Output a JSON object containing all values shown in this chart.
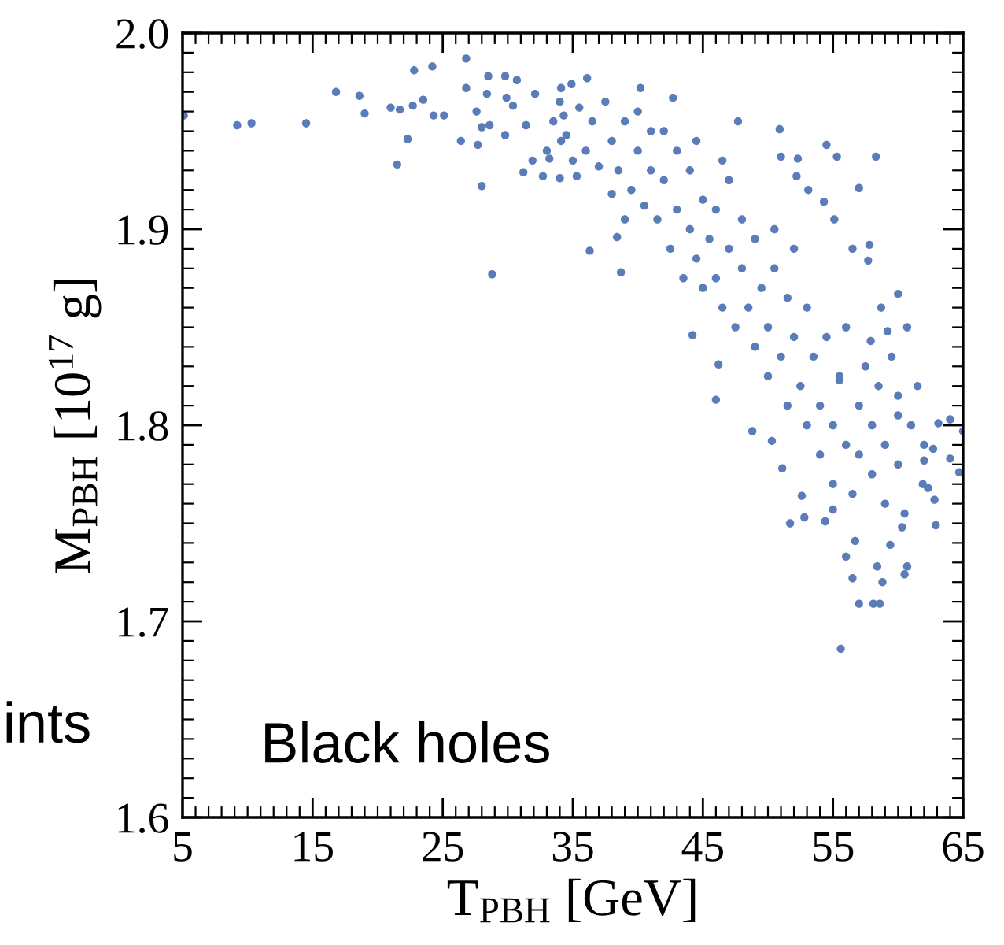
{
  "chart_data": {
    "type": "scatter",
    "xlabel": "T$_{PBH}$ [GeV]",
    "ylabel": "M$_{PBH}$ [10$^{17}$ g]",
    "annotations": [
      "Black holes",
      "ints"
    ],
    "xlim": [
      5,
      65
    ],
    "xticks": [
      5,
      15,
      25,
      35,
      45,
      55,
      65
    ],
    "ylim": [
      1.6,
      2.0
    ],
    "yticks": [
      {
        "value": 1.6,
        "label": "1.6"
      },
      {
        "value": 1.7,
        "label": "1.7"
      },
      {
        "value": 1.8,
        "label": "1.8"
      },
      {
        "value": 1.9,
        "label": "1.9"
      },
      {
        "value": 2.0,
        "label": "2.0"
      }
    ],
    "grid": false,
    "marker": "circle",
    "series": [
      {
        "color": "#5a7db9",
        "x": [
          5.1,
          9.2,
          10.3,
          14.5,
          16.8,
          18.6,
          19.0,
          21.0,
          21.7,
          21.5,
          22.3,
          22.8,
          24.2,
          22.7,
          23.5,
          24.3,
          25.1,
          26.8,
          28.0,
          28.8,
          26.4,
          27.7,
          28.5,
          27.6,
          28.0,
          28.6,
          26.8,
          28.4,
          29.8,
          30.7,
          29.9,
          30.4,
          29.8,
          31.2,
          31.9,
          32.7,
          34.0,
          35.3,
          33.2,
          31.4,
          32.1,
          34.1,
          34.9,
          34.3,
          34.1,
          36.1,
          40.2,
          42.7,
          47.7,
          50.9,
          54.5,
          55.3,
          58.3,
          57.0,
          51.0,
          52.3,
          52.2,
          53.1,
          54.3,
          55.1,
          57.8,
          56.5,
          57.7,
          60.0,
          60.7,
          58.7,
          59.2,
          60.0,
          57.9,
          55.5,
          44.2,
          46.2,
          36.3,
          38.7,
          38.4,
          46.0,
          48.8,
          50.3,
          51.1,
          52.6,
          51.7,
          52.8,
          54.4,
          55.0,
          56.0,
          56.5,
          56.7,
          57.0,
          58.1,
          58.6,
          55.6,
          58.4,
          60.5,
          60.7,
          58.8,
          59.4,
          60.3,
          62.9,
          61.9,
          62.3,
          62.0,
          62.7,
          64.0,
          64.0,
          65.0,
          64.7,
          62.8,
          63.1,
          33.5,
          34.5,
          35.5,
          36.0,
          36.5,
          37.0,
          35.0,
          37.5,
          33.0,
          34.0,
          38.0,
          38.5,
          39.0,
          39.5,
          40.0,
          40.5,
          41.0,
          38.0,
          39.0,
          40.0,
          41.0,
          41.5,
          42.0,
          42.5,
          43.0,
          43.0,
          43.5,
          44.0,
          44.0,
          44.5,
          45.0,
          45.0,
          42.0,
          44.5,
          45.5,
          46.0,
          46.0,
          46.5,
          47.0,
          47.0,
          47.5,
          48.0,
          48.0,
          48.5,
          49.0,
          49.0,
          49.5,
          46.5,
          50.0,
          50.0,
          50.5,
          51.0,
          51.5,
          51.5,
          52.0,
          52.5,
          53.0,
          53.0,
          50.5,
          52.0,
          53.5,
          54.0,
          54.0,
          54.5,
          55.0,
          55.0,
          55.5,
          56.0,
          56.0,
          56.5,
          57.0,
          57.0,
          57.5,
          58.0,
          58.0,
          58.5,
          59.0,
          59.0,
          59.5,
          60.0,
          60.0,
          60.5,
          61.0,
          61.5,
          62.0
        ],
        "values": [
          1.958,
          1.953,
          1.954,
          1.954,
          1.97,
          1.968,
          1.959,
          1.962,
          1.961,
          1.933,
          1.946,
          1.981,
          1.983,
          1.963,
          1.966,
          1.958,
          1.958,
          1.987,
          1.922,
          1.877,
          1.945,
          1.943,
          1.978,
          1.96,
          1.952,
          1.953,
          1.972,
          1.969,
          1.978,
          1.976,
          1.967,
          1.963,
          1.948,
          1.929,
          1.935,
          1.927,
          1.926,
          1.927,
          1.936,
          1.953,
          1.969,
          1.972,
          1.974,
          1.958,
          1.945,
          1.977,
          1.972,
          1.967,
          1.955,
          1.951,
          1.943,
          1.937,
          1.937,
          1.921,
          1.937,
          1.936,
          1.927,
          1.92,
          1.914,
          1.905,
          1.892,
          1.89,
          1.884,
          1.867,
          1.85,
          1.86,
          1.848,
          1.815,
          1.843,
          1.823,
          1.846,
          1.831,
          1.889,
          1.878,
          1.896,
          1.813,
          1.797,
          1.792,
          1.778,
          1.764,
          1.75,
          1.753,
          1.751,
          1.757,
          1.733,
          1.722,
          1.741,
          1.709,
          1.709,
          1.709,
          1.686,
          1.728,
          1.724,
          1.728,
          1.72,
          1.739,
          1.748,
          1.749,
          1.77,
          1.768,
          1.782,
          1.788,
          1.783,
          1.803,
          1.797,
          1.776,
          1.762,
          1.801,
          1.955,
          1.948,
          1.962,
          1.94,
          1.955,
          1.932,
          1.935,
          1.965,
          1.94,
          1.965,
          1.945,
          1.93,
          1.955,
          1.92,
          1.94,
          1.912,
          1.95,
          1.918,
          1.905,
          1.96,
          1.93,
          1.905,
          1.925,
          1.89,
          1.94,
          1.91,
          1.875,
          1.9,
          1.93,
          1.885,
          1.915,
          1.87,
          1.95,
          1.945,
          1.895,
          1.875,
          1.91,
          1.86,
          1.89,
          1.925,
          1.85,
          1.88,
          1.905,
          1.86,
          1.84,
          1.895,
          1.87,
          1.935,
          1.85,
          1.825,
          1.88,
          1.835,
          1.81,
          1.865,
          1.845,
          1.82,
          1.8,
          1.86,
          1.9,
          1.89,
          1.835,
          1.81,
          1.785,
          1.845,
          1.8,
          1.77,
          1.825,
          1.79,
          1.85,
          1.765,
          1.81,
          1.785,
          1.83,
          1.8,
          1.775,
          1.82,
          1.79,
          1.76,
          1.835,
          1.805,
          1.78,
          1.755,
          1.8,
          1.82,
          1.79
        ]
      }
    ]
  }
}
